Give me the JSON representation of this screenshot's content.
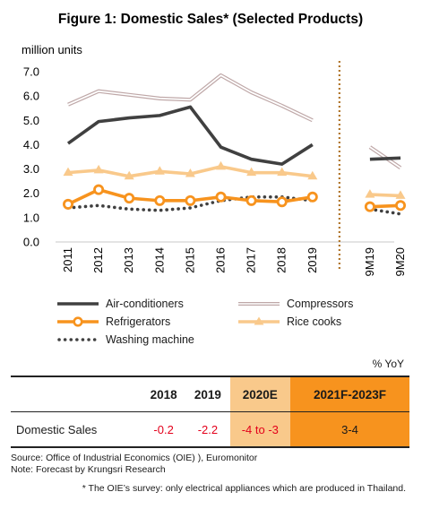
{
  "chart_data": {
    "type": "line",
    "title": "Figure 1: Domestic Sales* (Selected Products)",
    "ylabel": "million units",
    "ylim": [
      0,
      7
    ],
    "yticks": [
      "0.0",
      "1.0",
      "2.0",
      "3.0",
      "4.0",
      "5.0",
      "6.0",
      "7.0"
    ],
    "categories": [
      "2011",
      "2012",
      "2013",
      "2014",
      "2015",
      "2016",
      "2017",
      "2018",
      "2019",
      "9M19",
      "9M20"
    ],
    "divider_after": "2019",
    "grid": false,
    "legend_position": "bottom",
    "series": [
      {
        "name": "Air-conditioners",
        "key": "air",
        "color": "#404040",
        "values": [
          4.05,
          4.95,
          5.1,
          5.2,
          5.55,
          3.9,
          3.4,
          3.2,
          4.0,
          3.4,
          3.45
        ]
      },
      {
        "name": "Compressors",
        "key": "comp",
        "color": "#bfa8a8",
        "values": [
          5.65,
          6.2,
          6.05,
          5.9,
          5.85,
          6.85,
          6.15,
          5.6,
          5.0,
          3.9,
          3.05
        ]
      },
      {
        "name": "Refrigerators",
        "key": "fridge",
        "color": "#f7931e",
        "values": [
          1.55,
          2.15,
          1.8,
          1.7,
          1.7,
          1.85,
          1.7,
          1.65,
          1.85,
          1.45,
          1.5
        ]
      },
      {
        "name": "Rice cooks",
        "key": "rice",
        "color": "#f9c98b",
        "values": [
          2.85,
          2.95,
          2.7,
          2.9,
          2.8,
          3.1,
          2.85,
          2.85,
          2.7,
          1.95,
          1.9
        ]
      },
      {
        "name": "Washing machine",
        "key": "wash",
        "color": "#404040",
        "values": [
          1.4,
          1.5,
          1.35,
          1.3,
          1.4,
          1.7,
          1.85,
          1.85,
          1.7,
          1.35,
          1.15
        ]
      }
    ]
  },
  "table": {
    "unit": "% YoY",
    "headers": [
      "",
      "2018",
      "2019",
      "2020E",
      "2021F-2023F"
    ],
    "row_label": "Domestic Sales",
    "values": [
      "-0.2",
      "-2.2",
      "-4 to -3",
      "3-4"
    ]
  },
  "notes": {
    "source": "Source: Office of Industrial Economics (OIE) ), Euromonitor",
    "forecast": "Note: Forecast by Krungsri Research",
    "footnote": "* The OIE’s survey: only electrical appliances which are produced in Thailand."
  }
}
